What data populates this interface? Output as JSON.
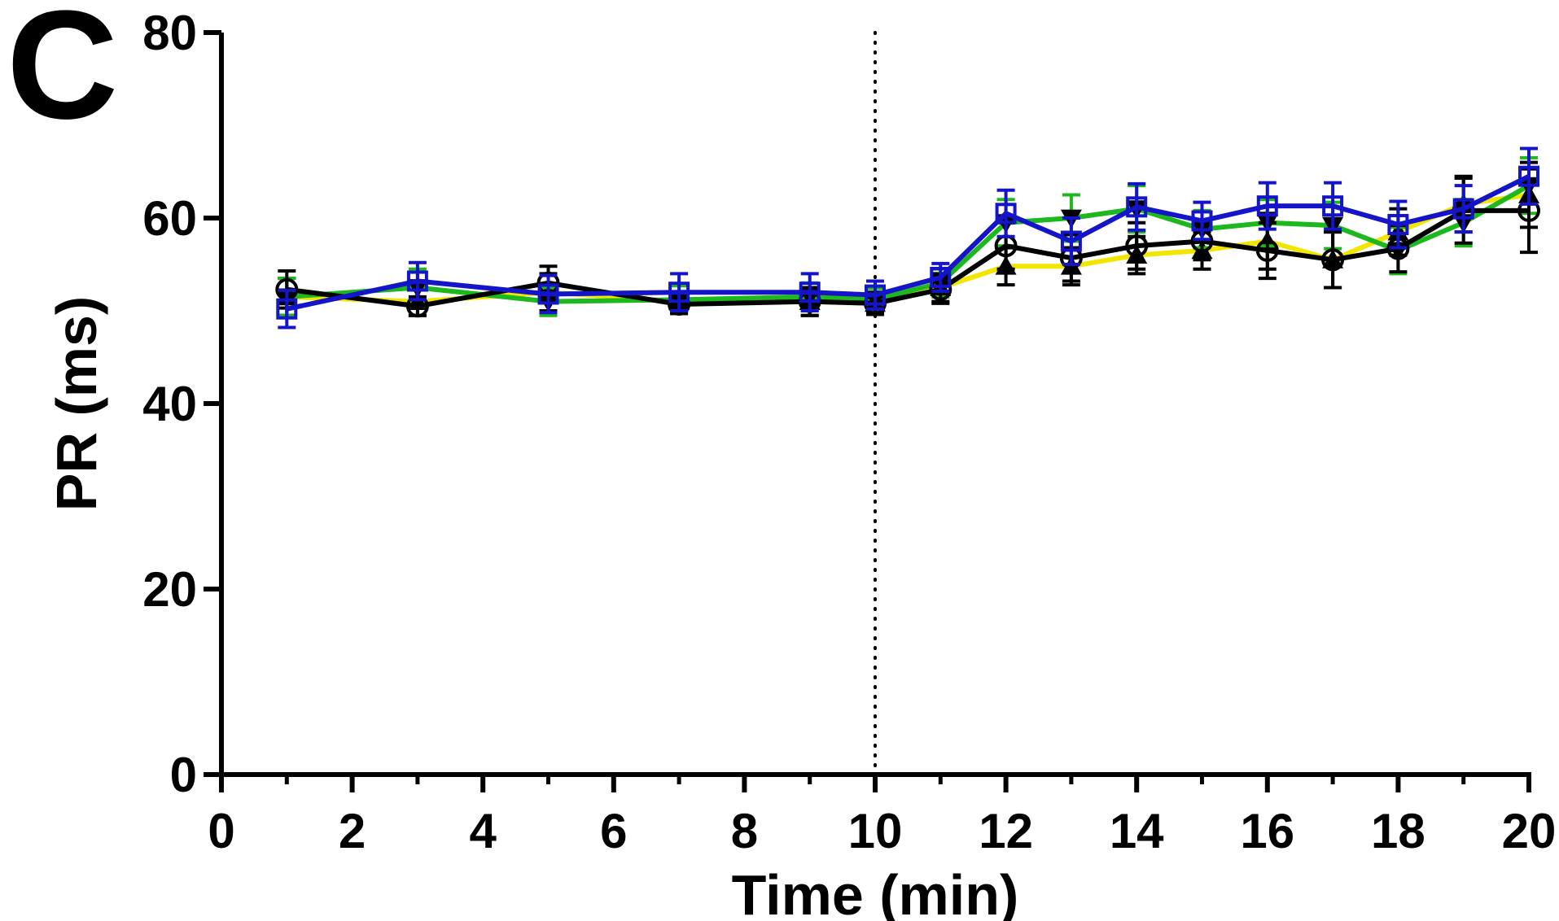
{
  "panel_label": "C",
  "chart_data": {
    "type": "line",
    "title": "",
    "xlabel": "Time (min)",
    "ylabel": "PR (ms)",
    "xlim": [
      0,
      20
    ],
    "ylim": [
      0,
      80
    ],
    "x_ticks": [
      0,
      2,
      4,
      6,
      8,
      10,
      12,
      14,
      16,
      18,
      20
    ],
    "y_ticks": [
      0,
      20,
      40,
      60,
      80
    ],
    "vertical_reference_line": {
      "x": 10,
      "style": "dotted"
    },
    "grid": false,
    "legend": "none",
    "x": [
      1,
      3,
      5,
      7,
      9,
      10,
      11,
      12,
      13,
      14,
      15,
      16,
      17,
      18,
      19,
      20
    ],
    "series": [
      {
        "color": "#f2e600",
        "marker": "triangle-up",
        "values": [
          51.5,
          51.0,
          52.0,
          51.0,
          51.0,
          50.8,
          52.5,
          54.8,
          54.8,
          56.0,
          56.5,
          57.5,
          55.5,
          58.5,
          61.5,
          62.5
        ],
        "errors": [
          2.0,
          1.5,
          2.0,
          1.0,
          1.5,
          1.2,
          1.5,
          2.0,
          2.0,
          2.0,
          2.0,
          3.0,
          3.0,
          2.5,
          3.0,
          3.5
        ]
      },
      {
        "color": "#1db81d",
        "marker": "triangle-down",
        "values": [
          51.5,
          52.5,
          51.0,
          51.2,
          51.5,
          51.2,
          53.0,
          59.5,
          60.0,
          61.0,
          58.8,
          59.5,
          59.2,
          56.5,
          59.5,
          63.5
        ],
        "errors": [
          2.0,
          2.0,
          1.5,
          1.5,
          1.5,
          1.2,
          1.5,
          2.5,
          2.5,
          2.5,
          2.0,
          2.5,
          2.5,
          2.5,
          2.5,
          3.0
        ]
      },
      {
        "color": "#000000",
        "marker": "circle-open",
        "values": [
          52.3,
          50.5,
          53.0,
          50.7,
          51.0,
          50.8,
          52.3,
          57.0,
          55.7,
          57.0,
          57.5,
          56.5,
          55.5,
          56.7,
          60.8,
          60.8
        ],
        "errors": [
          2.0,
          1.0,
          1.8,
          1.0,
          1.5,
          1.0,
          1.5,
          2.5,
          2.5,
          2.5,
          2.0,
          3.0,
          3.0,
          2.5,
          3.5,
          4.5
        ]
      },
      {
        "color": "#1414c8",
        "marker": "square-open",
        "values": [
          50.2,
          53.2,
          51.8,
          52.0,
          52.0,
          51.7,
          53.6,
          60.5,
          57.5,
          61.2,
          59.7,
          61.3,
          61.3,
          59.3,
          61.0,
          64.5
        ],
        "errors": [
          2.0,
          2.0,
          2.0,
          2.0,
          2.0,
          1.5,
          1.5,
          2.5,
          2.5,
          2.5,
          2.0,
          2.5,
          2.5,
          2.5,
          2.5,
          3.0
        ]
      }
    ]
  }
}
